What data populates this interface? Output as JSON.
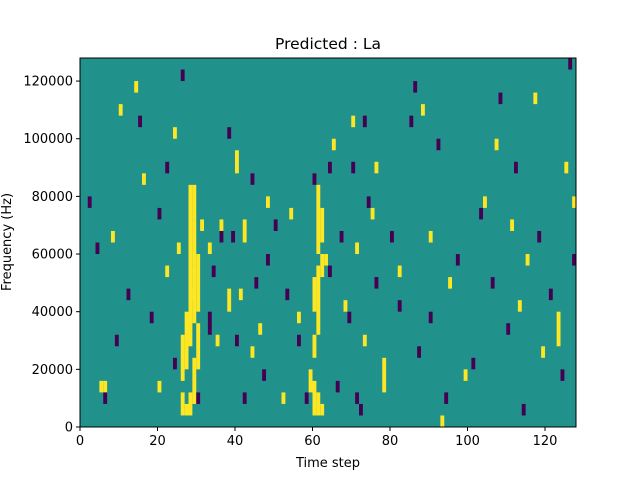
{
  "chart_data": {
    "type": "heatmap",
    "title": "Predicted : La",
    "xlabel": "Time step",
    "ylabel": "Frequency (Hz)",
    "xlim": [
      0,
      128
    ],
    "ylim": [
      0,
      128000
    ],
    "x_ticks": [
      0,
      20,
      40,
      60,
      80,
      100,
      120
    ],
    "x_tick_labels": [
      "0",
      "20",
      "40",
      "60",
      "80",
      "100",
      "120"
    ],
    "y_ticks": [
      0,
      20000,
      40000,
      60000,
      80000,
      100000,
      120000
    ],
    "y_tick_labels": [
      "0",
      "20000",
      "40000",
      "60000",
      "80000",
      "100000",
      "120000"
    ],
    "colormap": "viridis",
    "value_colors": {
      "low": "#440154",
      "mid": "#21918c",
      "high": "#fde725"
    },
    "background_value": "mid",
    "grid": false,
    "cells": [
      {
        "t": 27,
        "f0": 4000,
        "f1": 8000,
        "v": "high"
      },
      {
        "t": 28,
        "f0": 4000,
        "f1": 12000,
        "v": "high"
      },
      {
        "t": 29,
        "f0": 8000,
        "f1": 24000,
        "v": "high"
      },
      {
        "t": 26,
        "f0": 16000,
        "f1": 32000,
        "v": "high"
      },
      {
        "t": 27,
        "f0": 20000,
        "f1": 40000,
        "v": "high"
      },
      {
        "t": 28,
        "f0": 28000,
        "f1": 48000,
        "v": "high"
      },
      {
        "t": 29,
        "f0": 36000,
        "f1": 56000,
        "v": "high"
      },
      {
        "t": 28,
        "f0": 44000,
        "f1": 64000,
        "v": "high"
      },
      {
        "t": 29,
        "f0": 56000,
        "f1": 72000,
        "v": "high"
      },
      {
        "t": 28,
        "f0": 64000,
        "f1": 84000,
        "v": "high"
      },
      {
        "t": 29,
        "f0": 72000,
        "f1": 84000,
        "v": "high"
      },
      {
        "t": 30,
        "f0": 40000,
        "f1": 60000,
        "v": "high"
      },
      {
        "t": 30,
        "f0": 20000,
        "f1": 36000,
        "v": "high"
      },
      {
        "t": 25,
        "f0": 60000,
        "f1": 64000,
        "v": "high"
      },
      {
        "t": 26,
        "f0": 4000,
        "f1": 12000,
        "v": "high"
      },
      {
        "t": 60,
        "f0": 4000,
        "f1": 16000,
        "v": "high"
      },
      {
        "t": 61,
        "f0": 4000,
        "f1": 12000,
        "v": "high"
      },
      {
        "t": 62,
        "f0": 4000,
        "f1": 8000,
        "v": "high"
      },
      {
        "t": 60,
        "f0": 24000,
        "f1": 32000,
        "v": "high"
      },
      {
        "t": 61,
        "f0": 32000,
        "f1": 56000,
        "v": "high"
      },
      {
        "t": 60,
        "f0": 40000,
        "f1": 52000,
        "v": "high"
      },
      {
        "t": 62,
        "f0": 52000,
        "f1": 60000,
        "v": "high"
      },
      {
        "t": 61,
        "f0": 60000,
        "f1": 84000,
        "v": "high"
      },
      {
        "t": 62,
        "f0": 64000,
        "f1": 76000,
        "v": "high"
      },
      {
        "t": 63,
        "f0": 56000,
        "f1": 60000,
        "v": "high"
      },
      {
        "t": 59,
        "f0": 12000,
        "f1": 20000,
        "v": "high"
      },
      {
        "t": 40,
        "f0": 88000,
        "f1": 96000,
        "v": "high"
      },
      {
        "t": 31,
        "f0": 68000,
        "f1": 72000,
        "v": "high"
      },
      {
        "t": 33,
        "f0": 60000,
        "f1": 64000,
        "v": "high"
      },
      {
        "t": 35,
        "f0": 28000,
        "f1": 32000,
        "v": "high"
      },
      {
        "t": 36,
        "f0": 68000,
        "f1": 72000,
        "v": "high"
      },
      {
        "t": 38,
        "f0": 40000,
        "f1": 48000,
        "v": "high"
      },
      {
        "t": 41,
        "f0": 44000,
        "f1": 48000,
        "v": "high"
      },
      {
        "t": 42,
        "f0": 64000,
        "f1": 72000,
        "v": "high"
      },
      {
        "t": 44,
        "f0": 24000,
        "f1": 28000,
        "v": "high"
      },
      {
        "t": 46,
        "f0": 32000,
        "f1": 36000,
        "v": "high"
      },
      {
        "t": 48,
        "f0": 76000,
        "f1": 80000,
        "v": "high"
      },
      {
        "t": 52,
        "f0": 8000,
        "f1": 12000,
        "v": "high"
      },
      {
        "t": 54,
        "f0": 72000,
        "f1": 76000,
        "v": "high"
      },
      {
        "t": 56,
        "f0": 36000,
        "f1": 40000,
        "v": "high"
      },
      {
        "t": 65,
        "f0": 96000,
        "f1": 100000,
        "v": "high"
      },
      {
        "t": 68,
        "f0": 40000,
        "f1": 44000,
        "v": "high"
      },
      {
        "t": 70,
        "f0": 104000,
        "f1": 108000,
        "v": "high"
      },
      {
        "t": 71,
        "f0": 60000,
        "f1": 64000,
        "v": "high"
      },
      {
        "t": 73,
        "f0": 28000,
        "f1": 32000,
        "v": "high"
      },
      {
        "t": 75,
        "f0": 72000,
        "f1": 76000,
        "v": "high"
      },
      {
        "t": 76,
        "f0": 88000,
        "f1": 92000,
        "v": "high"
      },
      {
        "t": 78,
        "f0": 12000,
        "f1": 24000,
        "v": "high"
      },
      {
        "t": 82,
        "f0": 52000,
        "f1": 56000,
        "v": "high"
      },
      {
        "t": 88,
        "f0": 108000,
        "f1": 112000,
        "v": "high"
      },
      {
        "t": 90,
        "f0": 64000,
        "f1": 68000,
        "v": "high"
      },
      {
        "t": 93,
        "f0": 0,
        "f1": 4000,
        "v": "high"
      },
      {
        "t": 95,
        "f0": 48000,
        "f1": 52000,
        "v": "high"
      },
      {
        "t": 99,
        "f0": 16000,
        "f1": 20000,
        "v": "high"
      },
      {
        "t": 104,
        "f0": 76000,
        "f1": 80000,
        "v": "high"
      },
      {
        "t": 107,
        "f0": 96000,
        "f1": 100000,
        "v": "high"
      },
      {
        "t": 111,
        "f0": 68000,
        "f1": 72000,
        "v": "high"
      },
      {
        "t": 113,
        "f0": 40000,
        "f1": 44000,
        "v": "high"
      },
      {
        "t": 115,
        "f0": 56000,
        "f1": 60000,
        "v": "high"
      },
      {
        "t": 117,
        "f0": 112000,
        "f1": 116000,
        "v": "high"
      },
      {
        "t": 119,
        "f0": 24000,
        "f1": 28000,
        "v": "high"
      },
      {
        "t": 123,
        "f0": 28000,
        "f1": 40000,
        "v": "high"
      },
      {
        "t": 125,
        "f0": 88000,
        "f1": 92000,
        "v": "high"
      },
      {
        "t": 127,
        "f0": 76000,
        "f1": 80000,
        "v": "high"
      },
      {
        "t": 5,
        "f0": 12000,
        "f1": 16000,
        "v": "high"
      },
      {
        "t": 6,
        "f0": 12000,
        "f1": 16000,
        "v": "high"
      },
      {
        "t": 8,
        "f0": 64000,
        "f1": 68000,
        "v": "high"
      },
      {
        "t": 10,
        "f0": 108000,
        "f1": 112000,
        "v": "high"
      },
      {
        "t": 14,
        "f0": 116000,
        "f1": 120000,
        "v": "high"
      },
      {
        "t": 16,
        "f0": 84000,
        "f1": 88000,
        "v": "high"
      },
      {
        "t": 20,
        "f0": 12000,
        "f1": 16000,
        "v": "high"
      },
      {
        "t": 22,
        "f0": 52000,
        "f1": 56000,
        "v": "high"
      },
      {
        "t": 24,
        "f0": 100000,
        "f1": 104000,
        "v": "high"
      },
      {
        "t": 30,
        "f0": 8000,
        "f1": 12000,
        "v": "low"
      },
      {
        "t": 33,
        "f0": 32000,
        "f1": 40000,
        "v": "low"
      },
      {
        "t": 38,
        "f0": 100000,
        "f1": 104000,
        "v": "low"
      },
      {
        "t": 39,
        "f0": 64000,
        "f1": 68000,
        "v": "low"
      },
      {
        "t": 40,
        "f0": 28000,
        "f1": 32000,
        "v": "low"
      },
      {
        "t": 42,
        "f0": 8000,
        "f1": 12000,
        "v": "low"
      },
      {
        "t": 44,
        "f0": 84000,
        "f1": 88000,
        "v": "low"
      },
      {
        "t": 45,
        "f0": 48000,
        "f1": 52000,
        "v": "low"
      },
      {
        "t": 47,
        "f0": 16000,
        "f1": 20000,
        "v": "low"
      },
      {
        "t": 48,
        "f0": 56000,
        "f1": 60000,
        "v": "low"
      },
      {
        "t": 50,
        "f0": 68000,
        "f1": 72000,
        "v": "low"
      },
      {
        "t": 53,
        "f0": 44000,
        "f1": 48000,
        "v": "low"
      },
      {
        "t": 56,
        "f0": 28000,
        "f1": 32000,
        "v": "low"
      },
      {
        "t": 58,
        "f0": 8000,
        "f1": 12000,
        "v": "low"
      },
      {
        "t": 60,
        "f0": 84000,
        "f1": 88000,
        "v": "low"
      },
      {
        "t": 64,
        "f0": 52000,
        "f1": 56000,
        "v": "low"
      },
      {
        "t": 66,
        "f0": 12000,
        "f1": 16000,
        "v": "low"
      },
      {
        "t": 67,
        "f0": 64000,
        "f1": 68000,
        "v": "low"
      },
      {
        "t": 69,
        "f0": 36000,
        "f1": 40000,
        "v": "low"
      },
      {
        "t": 71,
        "f0": 8000,
        "f1": 12000,
        "v": "low"
      },
      {
        "t": 72,
        "f0": 4000,
        "f1": 8000,
        "v": "low"
      },
      {
        "t": 74,
        "f0": 76000,
        "f1": 80000,
        "v": "low"
      },
      {
        "t": 76,
        "f0": 48000,
        "f1": 52000,
        "v": "low"
      },
      {
        "t": 80,
        "f0": 64000,
        "f1": 68000,
        "v": "low"
      },
      {
        "t": 82,
        "f0": 40000,
        "f1": 44000,
        "v": "low"
      },
      {
        "t": 85,
        "f0": 104000,
        "f1": 108000,
        "v": "low"
      },
      {
        "t": 87,
        "f0": 24000,
        "f1": 28000,
        "v": "low"
      },
      {
        "t": 90,
        "f0": 36000,
        "f1": 40000,
        "v": "low"
      },
      {
        "t": 92,
        "f0": 96000,
        "f1": 100000,
        "v": "low"
      },
      {
        "t": 94,
        "f0": 8000,
        "f1": 12000,
        "v": "low"
      },
      {
        "t": 97,
        "f0": 56000,
        "f1": 60000,
        "v": "low"
      },
      {
        "t": 101,
        "f0": 20000,
        "f1": 24000,
        "v": "low"
      },
      {
        "t": 103,
        "f0": 72000,
        "f1": 76000,
        "v": "low"
      },
      {
        "t": 106,
        "f0": 48000,
        "f1": 52000,
        "v": "low"
      },
      {
        "t": 108,
        "f0": 112000,
        "f1": 116000,
        "v": "low"
      },
      {
        "t": 110,
        "f0": 32000,
        "f1": 36000,
        "v": "low"
      },
      {
        "t": 112,
        "f0": 88000,
        "f1": 92000,
        "v": "low"
      },
      {
        "t": 114,
        "f0": 4000,
        "f1": 8000,
        "v": "low"
      },
      {
        "t": 118,
        "f0": 64000,
        "f1": 68000,
        "v": "low"
      },
      {
        "t": 121,
        "f0": 44000,
        "f1": 48000,
        "v": "low"
      },
      {
        "t": 124,
        "f0": 16000,
        "f1": 20000,
        "v": "low"
      },
      {
        "t": 127,
        "f0": 56000,
        "f1": 60000,
        "v": "low"
      },
      {
        "t": 126,
        "f0": 124000,
        "f1": 128000,
        "v": "low"
      },
      {
        "t": 2,
        "f0": 76000,
        "f1": 80000,
        "v": "low"
      },
      {
        "t": 4,
        "f0": 60000,
        "f1": 64000,
        "v": "low"
      },
      {
        "t": 6,
        "f0": 8000,
        "f1": 12000,
        "v": "low"
      },
      {
        "t": 9,
        "f0": 28000,
        "f1": 32000,
        "v": "low"
      },
      {
        "t": 12,
        "f0": 44000,
        "f1": 48000,
        "v": "low"
      },
      {
        "t": 15,
        "f0": 104000,
        "f1": 108000,
        "v": "low"
      },
      {
        "t": 18,
        "f0": 36000,
        "f1": 40000,
        "v": "low"
      },
      {
        "t": 20,
        "f0": 72000,
        "f1": 76000,
        "v": "low"
      },
      {
        "t": 22,
        "f0": 88000,
        "f1": 92000,
        "v": "low"
      },
      {
        "t": 24,
        "f0": 20000,
        "f1": 24000,
        "v": "low"
      },
      {
        "t": 26,
        "f0": 120000,
        "f1": 124000,
        "v": "low"
      },
      {
        "t": 34,
        "f0": 52000,
        "f1": 56000,
        "v": "low"
      },
      {
        "t": 36,
        "f0": 64000,
        "f1": 68000,
        "v": "low"
      },
      {
        "t": 64,
        "f0": 88000,
        "f1": 92000,
        "v": "low"
      },
      {
        "t": 70,
        "f0": 88000,
        "f1": 92000,
        "v": "low"
      },
      {
        "t": 73,
        "f0": 104000,
        "f1": 108000,
        "v": "low"
      },
      {
        "t": 86,
        "f0": 116000,
        "f1": 120000,
        "v": "low"
      }
    ]
  }
}
